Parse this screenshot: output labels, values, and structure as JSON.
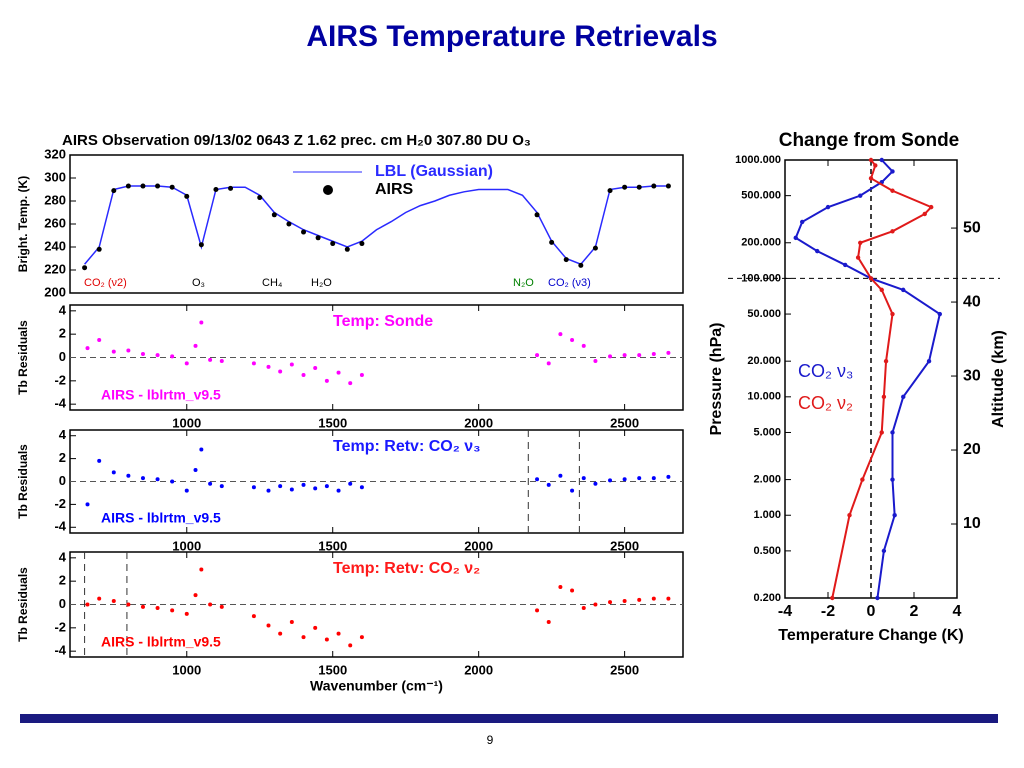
{
  "title": "AIRS Temperature Retrievals",
  "page_number": "9",
  "chart_data": [
    {
      "type": "line",
      "title": "AIRS Observation 09/13/02 0643 Z    1.62 prec. cm H₂0    307.80 DU O₃",
      "ylabel": "Bright. Temp. (K)",
      "x": [
        650,
        700,
        750,
        800,
        850,
        900,
        950,
        1000,
        1050,
        1100,
        1150,
        1200,
        1250,
        1300,
        1350,
        1400,
        1450,
        1500,
        1550,
        1600,
        1650,
        1700,
        1750,
        1800,
        1850,
        1900,
        1950,
        2000,
        2050,
        2100,
        2150,
        2200,
        2250,
        2300,
        2350,
        2400,
        2450,
        2500,
        2550,
        2600,
        2650
      ],
      "xlim": [
        600,
        2700
      ],
      "ylim": [
        200,
        320
      ],
      "yticks": [
        200,
        220,
        240,
        260,
        280,
        300,
        320
      ],
      "legend": "upper center",
      "series": [
        {
          "name": "LBL (Gaussian)",
          "color": "#2a2aff",
          "values": [
            225,
            240,
            290,
            293,
            293,
            293,
            292,
            285,
            240,
            290,
            292,
            292,
            285,
            270,
            262,
            255,
            250,
            245,
            240,
            245,
            255,
            262,
            270,
            276,
            280,
            285,
            288,
            290,
            290,
            290,
            285,
            270,
            245,
            230,
            225,
            240,
            290,
            292,
            292,
            293,
            293
          ]
        },
        {
          "name": "AIRS",
          "color": "#000000",
          "values": [
            222,
            238,
            289,
            293,
            293,
            293,
            292,
            284,
            242,
            290,
            291,
            null,
            283,
            268,
            260,
            253,
            248,
            243,
            238,
            243,
            null,
            null,
            null,
            null,
            null,
            null,
            null,
            null,
            null,
            null,
            null,
            268,
            244,
            229,
            224,
            239,
            289,
            292,
            292,
            293,
            293
          ]
        }
      ],
      "annotations": [
        {
          "text": "CO₂ (ν2)",
          "color": "#e00000"
        },
        {
          "text": "O₃",
          "color": "#000000"
        },
        {
          "text": "CH₄",
          "color": "#000000"
        },
        {
          "text": "H₂O",
          "color": "#000000"
        },
        {
          "text": "N₂O",
          "color": "#008000"
        },
        {
          "text": "CO₂ (ν3)",
          "color": "#0000cc"
        }
      ]
    },
    {
      "type": "scatter",
      "panel_title": "Temp: Sonde",
      "panel_title_color": "#ff00ff",
      "note": "AIRS  - lblrtm_v9.5",
      "ylabel": "Tb Residuals",
      "color": "#ff00ff",
      "x": [
        660,
        700,
        750,
        800,
        850,
        900,
        950,
        1000,
        1030,
        1050,
        1080,
        1120,
        1230,
        1280,
        1320,
        1360,
        1400,
        1440,
        1480,
        1520,
        1560,
        1600,
        2200,
        2240,
        2280,
        2320,
        2360,
        2400,
        2450,
        2500,
        2550,
        2600,
        2650
      ],
      "values": [
        0.8,
        1.5,
        0.5,
        0.6,
        0.3,
        0.2,
        0.1,
        -0.5,
        1.0,
        3.0,
        -0.2,
        -0.3,
        -0.5,
        -0.8,
        -1.2,
        -0.6,
        -1.5,
        -0.9,
        -2.0,
        -1.3,
        -2.2,
        -1.5,
        0.2,
        -0.5,
        2.0,
        1.5,
        1.0,
        -0.3,
        0.1,
        0.2,
        0.2,
        0.3,
        0.4
      ],
      "xlim": [
        600,
        2700
      ],
      "xticks": [
        1000,
        1500,
        2000,
        2500
      ],
      "ylim": [
        -4.5,
        4.5
      ],
      "yticks": [
        -4,
        -2,
        0,
        2,
        4
      ],
      "vlines": []
    },
    {
      "type": "scatter",
      "panel_title": "Temp: Retv: CO₂ ν₃",
      "panel_title_color": "#1a1aff",
      "note": "AIRS  - lblrtm_v9.5",
      "ylabel": "Tb Residuals",
      "color": "#0000ff",
      "x": [
        660,
        700,
        750,
        800,
        850,
        900,
        950,
        1000,
        1030,
        1050,
        1080,
        1120,
        1230,
        1280,
        1320,
        1360,
        1400,
        1440,
        1480,
        1520,
        1560,
        1600,
        2200,
        2240,
        2280,
        2320,
        2360,
        2400,
        2450,
        2500,
        2550,
        2600,
        2650
      ],
      "values": [
        -2,
        1.8,
        0.8,
        0.5,
        0.3,
        0.2,
        0,
        -0.8,
        1,
        2.8,
        -0.2,
        -0.4,
        -0.5,
        -0.8,
        -0.4,
        -0.7,
        -0.3,
        -0.6,
        -0.4,
        -0.8,
        -0.2,
        -0.5,
        0.2,
        -0.3,
        0.5,
        -0.8,
        0.3,
        -0.2,
        0.1,
        0.2,
        0.3,
        0.3,
        0.4
      ],
      "xlim": [
        600,
        2700
      ],
      "xticks": [
        1000,
        1500,
        2000,
        2500
      ],
      "ylim": [
        -4.5,
        4.5
      ],
      "yticks": [
        -4,
        -2,
        0,
        2,
        4
      ],
      "vlines": [
        2170,
        2345
      ]
    },
    {
      "type": "scatter",
      "panel_title": "Temp: Retv: CO₂ ν₂",
      "panel_title_color": "#ff1a1a",
      "note": "AIRS  - lblrtm_v9.5",
      "ylabel": "Tb Residuals",
      "xlabel": "Wavenumber (cm⁻¹)",
      "color": "#ff0000",
      "x": [
        660,
        700,
        750,
        800,
        850,
        900,
        950,
        1000,
        1030,
        1050,
        1080,
        1120,
        1230,
        1280,
        1320,
        1360,
        1400,
        1440,
        1480,
        1520,
        1560,
        1600,
        2200,
        2240,
        2280,
        2320,
        2360,
        2400,
        2450,
        2500,
        2550,
        2600,
        2650
      ],
      "values": [
        0,
        0.5,
        0.3,
        0,
        -0.2,
        -0.3,
        -0.5,
        -0.8,
        0.8,
        3,
        0,
        -0.2,
        -1,
        -1.8,
        -2.5,
        -1.5,
        -2.8,
        -2,
        -3,
        -2.5,
        -3.5,
        -2.8,
        -0.5,
        -1.5,
        1.5,
        1.2,
        -0.3,
        0,
        0.2,
        0.3,
        0.4,
        0.5,
        0.5
      ],
      "xlim": [
        600,
        2700
      ],
      "xticks": [
        1000,
        1500,
        2000,
        2500
      ],
      "ylim": [
        -4.5,
        4.5
      ],
      "yticks": [
        -4,
        -2,
        0,
        2,
        4
      ],
      "vlines": [
        650,
        795
      ]
    },
    {
      "type": "profile",
      "title": "Change from Sonde",
      "xlabel": "Temperature Change (K)",
      "ylabel": "Pressure (hPa)",
      "y2label": "Altitude (km)",
      "log_y": true,
      "xlim": [
        -4,
        4
      ],
      "xticks": [
        -4,
        -2,
        0,
        2,
        4
      ],
      "ylim": [
        0.2,
        1000
      ],
      "yticks": [
        {
          "value": 0.2,
          "label": "0.200"
        },
        {
          "value": 0.5,
          "label": "0.500"
        },
        {
          "value": 1,
          "label": "1.000"
        },
        {
          "value": 2,
          "label": "2.000"
        },
        {
          "value": 5,
          "label": "5.000"
        },
        {
          "value": 10,
          "label": "10.000"
        },
        {
          "value": 20,
          "label": "20.000"
        },
        {
          "value": 50,
          "label": "50.000"
        },
        {
          "value": 100,
          "label": "100.000"
        },
        {
          "value": 200,
          "label": "200.000"
        },
        {
          "value": 500,
          "label": "500.000"
        },
        {
          "value": 1000,
          "label": "1000.000"
        }
      ],
      "y2lim": [
        0,
        59.2
      ],
      "y2ticks": [
        10,
        20,
        30,
        40,
        50
      ],
      "hline": 100,
      "vline": 0,
      "series": [
        {
          "name": "CO₂ ν₃",
          "color": "#1a1acc",
          "x": [
            0.3,
            0.6,
            1.1,
            1.0,
            1.0,
            1.5,
            2.7,
            3.2,
            1.5,
            0,
            -1.2,
            -2.5,
            -3.5,
            -3.2,
            -2,
            -0.5,
            0.5,
            1,
            0.5
          ],
          "values": [
            0.2,
            0.5,
            1,
            2,
            5,
            10,
            20,
            50,
            80,
            100,
            130,
            170,
            220,
            300,
            400,
            500,
            650,
            800,
            1000
          ]
        },
        {
          "name": "CO₂ ν₂",
          "color": "#e01a1a",
          "x": [
            -1.8,
            -1.0,
            -0.4,
            0.5,
            0.6,
            0.7,
            1.0,
            0.5,
            0,
            -0.6,
            -0.5,
            1,
            2.5,
            2.8,
            1,
            0,
            0.2,
            0
          ],
          "values": [
            0.2,
            1,
            2,
            5,
            10,
            20,
            50,
            80,
            100,
            150,
            200,
            250,
            350,
            400,
            550,
            700,
            900,
            1000
          ]
        }
      ]
    }
  ]
}
